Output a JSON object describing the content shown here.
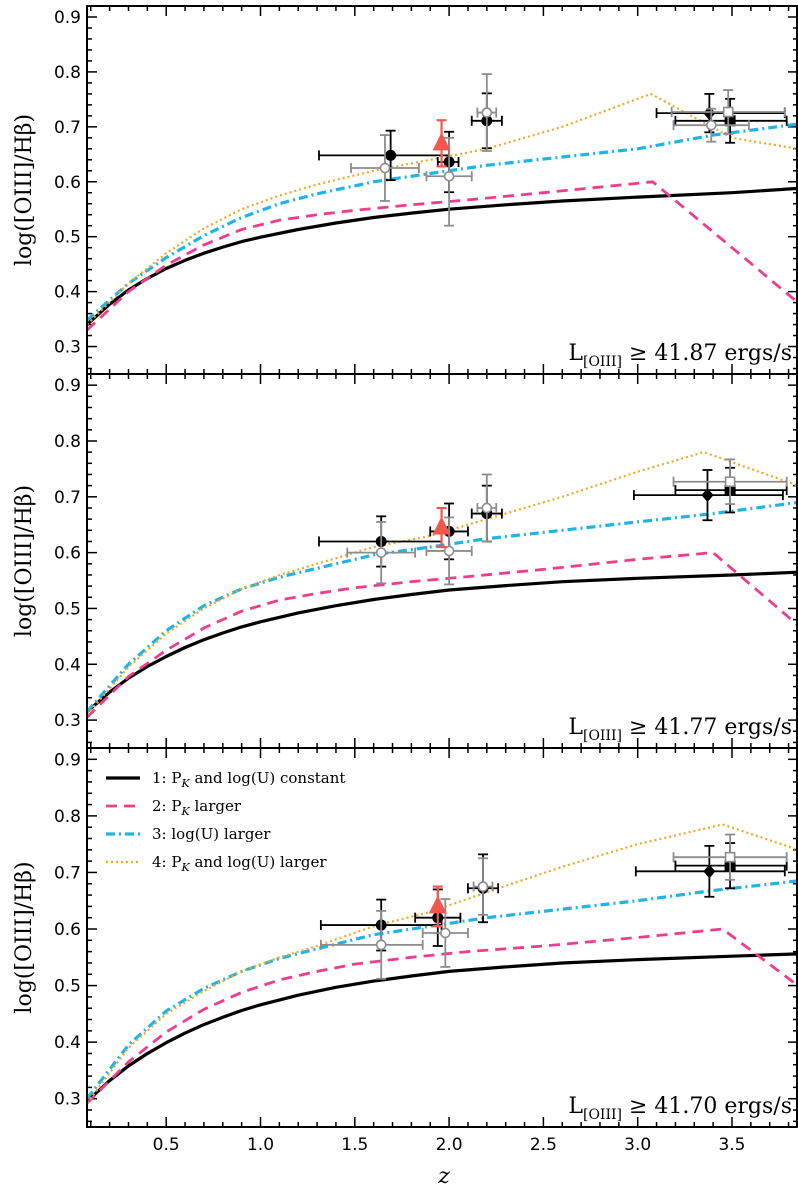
{
  "figure": {
    "xlabel": "z",
    "ylabel": "log([OIII]/Hβ)"
  },
  "colors": {
    "series1": "#000000",
    "series2": "#ee3d8c",
    "series3": "#1eb4e6",
    "series4": "#f5a623",
    "triangle": "#f4574e",
    "grey_points": "#8c8c8c"
  },
  "chart_data": [
    {
      "type": "line",
      "annotation": "L[OIII] ≥ 41.87 ergs/s",
      "annotation_main": "L",
      "annotation_sub": "[OIII]",
      "annotation_rest": " ≥ 41.87 ergs/s",
      "xlim": [
        0.08,
        3.85
      ],
      "ylim": [
        0.25,
        0.92
      ],
      "xticks": [
        0.5,
        1.0,
        1.5,
        2.0,
        2.5,
        3.0,
        3.5
      ],
      "yticks": [
        0.3,
        0.4,
        0.5,
        0.6,
        0.7,
        0.8,
        0.9
      ],
      "series": [
        {
          "x": [
            0.08,
            0.2,
            0.3,
            0.4,
            0.5,
            0.6,
            0.7,
            0.8,
            0.9,
            1.0,
            1.2,
            1.4,
            1.6,
            1.8,
            2.0,
            2.3,
            2.6,
            3.0,
            3.5,
            3.85
          ],
          "y": [
            0.34,
            0.377,
            0.403,
            0.424,
            0.442,
            0.457,
            0.47,
            0.481,
            0.491,
            0.499,
            0.513,
            0.525,
            0.535,
            0.543,
            0.55,
            0.558,
            0.565,
            0.572,
            0.58,
            0.588
          ]
        },
        {
          "x": [
            0.08,
            0.3,
            0.5,
            0.7,
            0.9,
            1.1,
            1.3,
            1.5,
            1.8,
            2.1,
            2.5,
            3.08,
            3.85
          ],
          "y": [
            0.33,
            0.4,
            0.448,
            0.485,
            0.513,
            0.53,
            0.54,
            0.548,
            0.558,
            0.567,
            0.58,
            0.6,
            0.38
          ]
        },
        {
          "x": [
            0.08,
            0.3,
            0.5,
            0.7,
            0.9,
            1.1,
            1.3,
            1.6,
            1.9,
            2.2,
            2.6,
            3.0,
            3.4,
            3.85
          ],
          "y": [
            0.348,
            0.415,
            0.462,
            0.502,
            0.535,
            0.56,
            0.578,
            0.6,
            0.615,
            0.63,
            0.645,
            0.66,
            0.685,
            0.705
          ]
        },
        {
          "x": [
            0.08,
            0.3,
            0.5,
            0.7,
            0.9,
            1.1,
            1.3,
            1.6,
            1.9,
            2.2,
            2.6,
            3.07,
            3.5,
            3.85
          ],
          "y": [
            0.34,
            0.415,
            0.47,
            0.515,
            0.55,
            0.575,
            0.595,
            0.62,
            0.64,
            0.66,
            0.7,
            0.76,
            0.68,
            0.66
          ]
        }
      ],
      "points": [
        {
          "x": 1.69,
          "y": 0.648,
          "xerr": [
            0.38,
            0.31
          ],
          "yerr": [
            0.045,
            0.045
          ],
          "style": "black-circle"
        },
        {
          "x": 2.0,
          "y": 0.636,
          "xerr": [
            0.06,
            0.05
          ],
          "yerr": [
            0.055,
            0.055
          ],
          "style": "black-circle"
        },
        {
          "x": 2.2,
          "y": 0.711,
          "xerr": [
            0.08,
            0.08
          ],
          "yerr": [
            0.05,
            0.05
          ],
          "style": "black-circle"
        },
        {
          "x": 1.66,
          "y": 0.625,
          "xerr": [
            0.18,
            0.18
          ],
          "yerr": [
            0.06,
            0.06
          ],
          "style": "grey-open"
        },
        {
          "x": 2.0,
          "y": 0.61,
          "xerr": [
            0.12,
            0.12
          ],
          "yerr": [
            0.09,
            0.07
          ],
          "style": "grey-open"
        },
        {
          "x": 2.2,
          "y": 0.726,
          "xerr": [
            0.05,
            0.05
          ],
          "yerr": [
            0.07,
            0.07
          ],
          "style": "grey-open"
        },
        {
          "x": 1.96,
          "y": 0.67,
          "xerr": [
            0,
            0
          ],
          "yerr": [
            0.042,
            0.042
          ],
          "style": "red-triangle"
        },
        {
          "x": 3.38,
          "y": 0.725,
          "xerr": [
            0.28,
            0.4
          ],
          "yerr": [
            0.035,
            0.035
          ],
          "style": "black-diamond"
        },
        {
          "x": 3.49,
          "y": 0.711,
          "xerr": [
            0.29,
            0.3
          ],
          "yerr": [
            0.04,
            0.04
          ],
          "style": "black-square"
        },
        {
          "x": 3.39,
          "y": 0.703,
          "xerr": [
            0.2,
            0.2
          ],
          "yerr": [
            0.03,
            0.03
          ],
          "style": "grey-open"
        },
        {
          "x": 3.48,
          "y": 0.727,
          "xerr": [
            0.3,
            0.3
          ],
          "yerr": [
            0.04,
            0.04
          ],
          "style": "grey-open-square"
        }
      ]
    },
    {
      "type": "line",
      "annotation": "L[OIII] ≥ 41.77 ergs/s",
      "annotation_main": "L",
      "annotation_sub": "[OIII]",
      "annotation_rest": " ≥ 41.77 ergs/s",
      "xlim": [
        0.08,
        3.85
      ],
      "ylim": [
        0.25,
        0.92
      ],
      "xticks": [
        0.5,
        1.0,
        1.5,
        2.0,
        2.5,
        3.0,
        3.5
      ],
      "yticks": [
        0.3,
        0.4,
        0.5,
        0.6,
        0.7,
        0.8,
        0.9
      ],
      "series": [
        {
          "x": [
            0.08,
            0.2,
            0.3,
            0.4,
            0.5,
            0.6,
            0.7,
            0.8,
            0.9,
            1.0,
            1.2,
            1.4,
            1.6,
            1.8,
            2.0,
            2.3,
            2.6,
            3.0,
            3.5,
            3.85
          ],
          "y": [
            0.315,
            0.35,
            0.375,
            0.396,
            0.414,
            0.43,
            0.444,
            0.456,
            0.467,
            0.476,
            0.492,
            0.505,
            0.516,
            0.525,
            0.533,
            0.541,
            0.548,
            0.554,
            0.56,
            0.565
          ]
        },
        {
          "x": [
            0.08,
            0.3,
            0.5,
            0.7,
            0.9,
            1.1,
            1.3,
            1.5,
            1.8,
            2.1,
            2.5,
            3.0,
            3.4,
            3.85
          ],
          "y": [
            0.305,
            0.378,
            0.425,
            0.465,
            0.495,
            0.515,
            0.527,
            0.537,
            0.548,
            0.557,
            0.57,
            0.588,
            0.6,
            0.47
          ]
        },
        {
          "x": [
            0.08,
            0.3,
            0.5,
            0.7,
            0.9,
            1.1,
            1.3,
            1.6,
            1.9,
            2.2,
            2.6,
            3.0,
            3.4,
            3.85
          ],
          "y": [
            0.315,
            0.4,
            0.46,
            0.505,
            0.535,
            0.556,
            0.572,
            0.596,
            0.61,
            0.625,
            0.64,
            0.655,
            0.67,
            0.69
          ]
        },
        {
          "x": [
            0.08,
            0.3,
            0.5,
            0.7,
            0.9,
            1.1,
            1.3,
            1.6,
            1.9,
            2.2,
            2.6,
            3.0,
            3.35,
            3.85
          ],
          "y": [
            0.31,
            0.395,
            0.455,
            0.5,
            0.535,
            0.56,
            0.58,
            0.61,
            0.63,
            0.66,
            0.7,
            0.745,
            0.78,
            0.72
          ]
        }
      ],
      "points": [
        {
          "x": 1.64,
          "y": 0.62,
          "xerr": [
            0.33,
            0.32
          ],
          "yerr": [
            0.045,
            0.045
          ],
          "style": "black-circle"
        },
        {
          "x": 2.0,
          "y": 0.638,
          "xerr": [
            0.1,
            0.1
          ],
          "yerr": [
            0.05,
            0.05
          ],
          "style": "black-circle"
        },
        {
          "x": 2.2,
          "y": 0.67,
          "xerr": [
            0.08,
            0.08
          ],
          "yerr": [
            0.05,
            0.05
          ],
          "style": "black-circle"
        },
        {
          "x": 1.64,
          "y": 0.6,
          "xerr": [
            0.18,
            0.18
          ],
          "yerr": [
            0.055,
            0.055
          ],
          "style": "grey-open"
        },
        {
          "x": 2.0,
          "y": 0.603,
          "xerr": [
            0.12,
            0.12
          ],
          "yerr": [
            0.06,
            0.06
          ],
          "style": "grey-open"
        },
        {
          "x": 2.2,
          "y": 0.68,
          "xerr": [
            0.05,
            0.05
          ],
          "yerr": [
            0.06,
            0.06
          ],
          "style": "grey-open"
        },
        {
          "x": 1.96,
          "y": 0.645,
          "xerr": [
            0,
            0
          ],
          "yerr": [
            0.035,
            0.035
          ],
          "style": "red-triangle"
        },
        {
          "x": 3.37,
          "y": 0.703,
          "xerr": [
            0.39,
            0.4
          ],
          "yerr": [
            0.045,
            0.045
          ],
          "style": "black-diamond"
        },
        {
          "x": 3.49,
          "y": 0.712,
          "xerr": [
            0.29,
            0.3
          ],
          "yerr": [
            0.04,
            0.04
          ],
          "style": "black-square"
        },
        {
          "x": 3.49,
          "y": 0.727,
          "xerr": [
            0.3,
            0.3
          ],
          "yerr": [
            0.04,
            0.04
          ],
          "style": "grey-open-square"
        }
      ]
    },
    {
      "type": "line",
      "annotation": "L[OIII] ≥ 41.70 ergs/s",
      "annotation_main": "L",
      "annotation_sub": "[OIII]",
      "annotation_rest": " ≥ 41.70 ergs/s",
      "xlim": [
        0.08,
        3.85
      ],
      "ylim": [
        0.25,
        0.92
      ],
      "xticks": [
        0.5,
        1.0,
        1.5,
        2.0,
        2.5,
        3.0,
        3.5
      ],
      "yticks": [
        0.3,
        0.4,
        0.5,
        0.6,
        0.7,
        0.8,
        0.9
      ],
      "legend": {
        "placement": "top-left",
        "entries": [
          {
            "prefix": "1: P",
            "sub": "K",
            "suffix": " and log(U) constant"
          },
          {
            "prefix": "2: P",
            "sub": "K",
            "suffix": " larger"
          },
          {
            "prefix": "3: log(U) larger",
            "sub": "",
            "suffix": ""
          },
          {
            "prefix": "4: P",
            "sub": "K",
            "suffix": " and log(U) larger"
          }
        ]
      },
      "series": [
        {
          "name": "1: P_K and log(U) constant",
          "x": [
            0.08,
            0.2,
            0.3,
            0.4,
            0.5,
            0.6,
            0.7,
            0.8,
            0.9,
            1.0,
            1.2,
            1.4,
            1.6,
            1.8,
            2.0,
            2.3,
            2.6,
            3.0,
            3.5,
            3.85
          ],
          "y": [
            0.295,
            0.332,
            0.358,
            0.38,
            0.399,
            0.416,
            0.431,
            0.444,
            0.456,
            0.466,
            0.483,
            0.497,
            0.508,
            0.517,
            0.525,
            0.533,
            0.54,
            0.546,
            0.552,
            0.556
          ]
        },
        {
          "name": "2: P_K larger",
          "x": [
            0.08,
            0.3,
            0.5,
            0.7,
            0.9,
            1.1,
            1.3,
            1.5,
            1.8,
            2.1,
            2.5,
            3.0,
            3.45,
            3.85
          ],
          "y": [
            0.292,
            0.365,
            0.418,
            0.458,
            0.488,
            0.51,
            0.525,
            0.538,
            0.55,
            0.56,
            0.57,
            0.585,
            0.6,
            0.5
          ]
        },
        {
          "name": "3: log(U) larger",
          "x": [
            0.08,
            0.3,
            0.5,
            0.7,
            0.9,
            1.1,
            1.3,
            1.6,
            1.9,
            2.2,
            2.6,
            3.0,
            3.4,
            3.85
          ],
          "y": [
            0.3,
            0.395,
            0.455,
            0.495,
            0.525,
            0.548,
            0.565,
            0.59,
            0.605,
            0.62,
            0.635,
            0.65,
            0.668,
            0.685
          ]
        },
        {
          "name": "4: P_K and log(U) larger",
          "x": [
            0.08,
            0.3,
            0.5,
            0.7,
            0.9,
            1.1,
            1.3,
            1.6,
            1.9,
            2.2,
            2.6,
            3.0,
            3.45,
            3.85
          ],
          "y": [
            0.292,
            0.39,
            0.45,
            0.49,
            0.525,
            0.55,
            0.57,
            0.605,
            0.63,
            0.665,
            0.71,
            0.75,
            0.785,
            0.74
          ]
        }
      ],
      "points": [
        {
          "x": 1.64,
          "y": 0.607,
          "xerr": [
            0.32,
            0.32
          ],
          "yerr": [
            0.045,
            0.045
          ],
          "style": "black-circle"
        },
        {
          "x": 1.94,
          "y": 0.62,
          "xerr": [
            0.12,
            0.12
          ],
          "yerr": [
            0.05,
            0.05
          ],
          "style": "black-circle"
        },
        {
          "x": 2.18,
          "y": 0.672,
          "xerr": [
            0.08,
            0.08
          ],
          "yerr": [
            0.06,
            0.06
          ],
          "style": "black-circle"
        },
        {
          "x": 1.64,
          "y": 0.572,
          "xerr": [
            0.32,
            0.22
          ],
          "yerr": [
            0.06,
            0.06
          ],
          "style": "grey-open"
        },
        {
          "x": 1.98,
          "y": 0.593,
          "xerr": [
            0.12,
            0.12
          ],
          "yerr": [
            0.06,
            0.06
          ],
          "style": "grey-open"
        },
        {
          "x": 2.18,
          "y": 0.675,
          "xerr": [
            0.05,
            0.05
          ],
          "yerr": [
            0.05,
            0.05
          ],
          "style": "grey-open"
        },
        {
          "x": 1.94,
          "y": 0.64,
          "xerr": [
            0,
            0
          ],
          "yerr": [
            0.035,
            0.035
          ],
          "style": "red-triangle"
        },
        {
          "x": 3.38,
          "y": 0.702,
          "xerr": [
            0.39,
            0.4
          ],
          "yerr": [
            0.045,
            0.045
          ],
          "style": "black-diamond"
        },
        {
          "x": 3.49,
          "y": 0.712,
          "xerr": [
            0.29,
            0.3
          ],
          "yerr": [
            0.04,
            0.04
          ],
          "style": "black-square"
        },
        {
          "x": 3.49,
          "y": 0.727,
          "xerr": [
            0.3,
            0.3
          ],
          "yerr": [
            0.04,
            0.04
          ],
          "style": "grey-open-square"
        }
      ]
    }
  ]
}
